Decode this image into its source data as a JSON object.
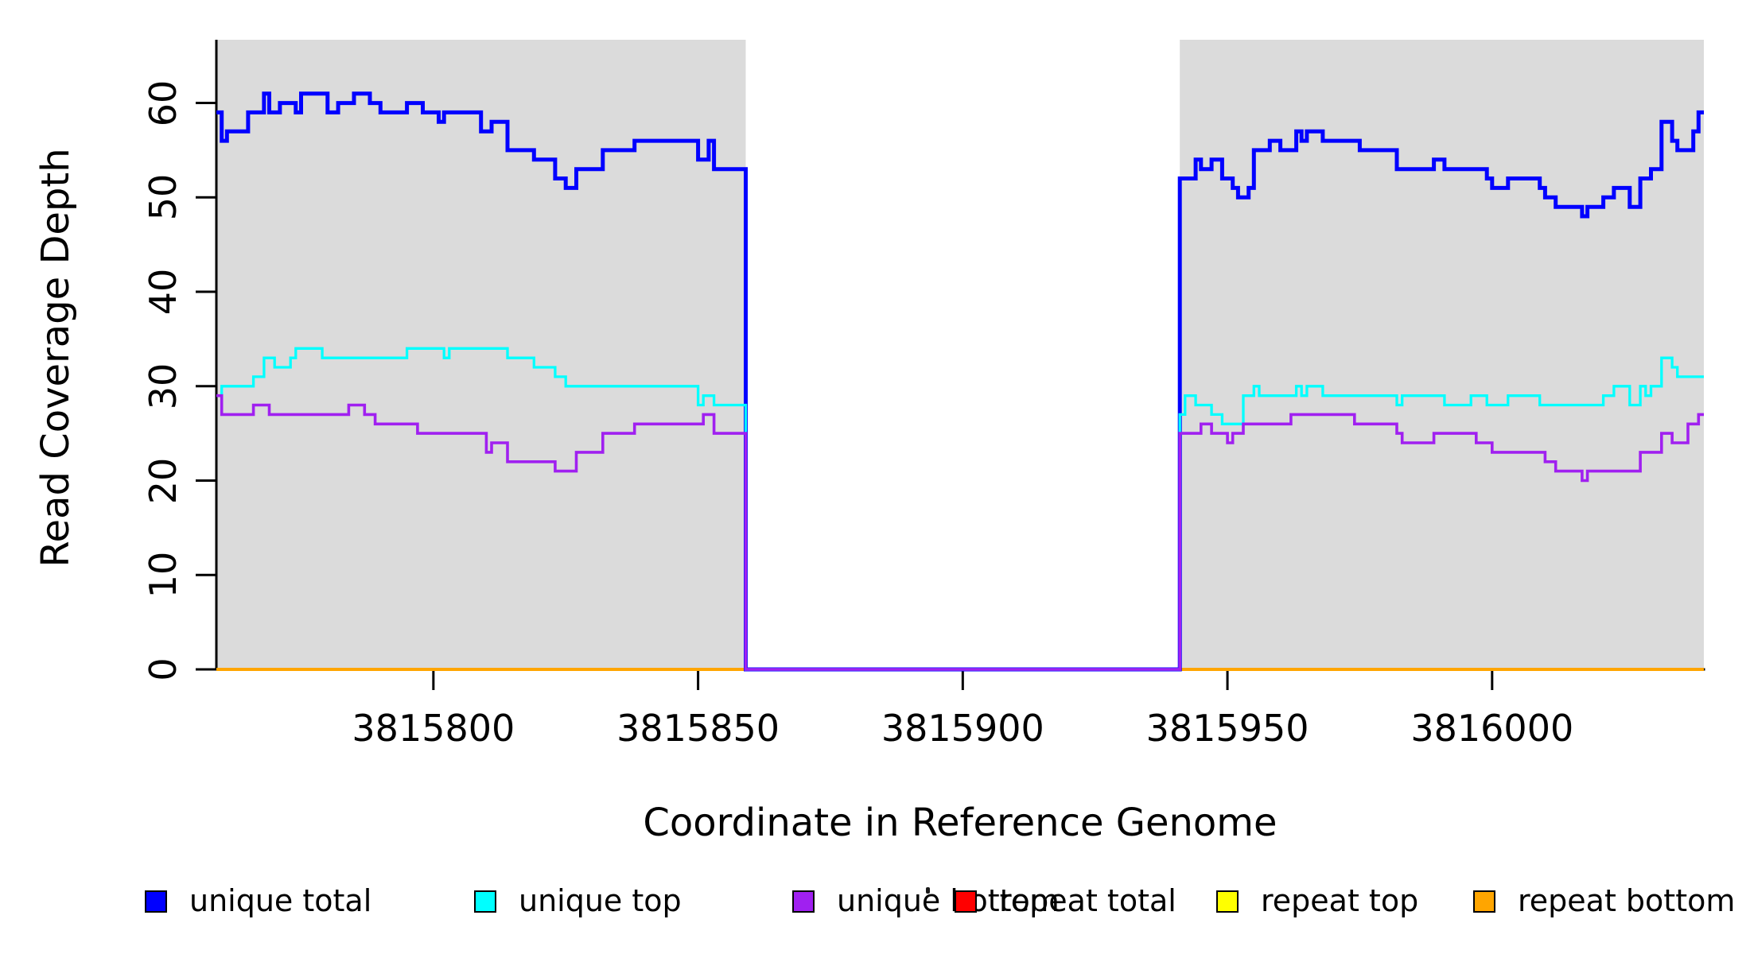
{
  "figure": {
    "x_axis_title": "Coordinate in Reference Genome",
    "y_axis_title": "Read Coverage Depth"
  },
  "legend": {
    "items": [
      {
        "label": "unique total",
        "color": "#0000FF"
      },
      {
        "label": "unique top",
        "color": "#00FFFF"
      },
      {
        "label": "unique bottom",
        "color": "#A020F0"
      },
      {
        "label": "repeat total",
        "color": "#FF0000"
      },
      {
        "label": "repeat top",
        "color": "#FFFF00"
      },
      {
        "label": "repeat bottom",
        "color": "#FFA500"
      }
    ]
  },
  "chart_data": {
    "type": "line",
    "subtype": "step-coverage-plot",
    "title": "",
    "xlabel": "Coordinate in Reference Genome",
    "ylabel": "Read Coverage Depth",
    "xlim": [
      3815759,
      3816040
    ],
    "ylim": [
      0,
      66.7
    ],
    "x_ticks": [
      3815800,
      3815850,
      3815900,
      3815950,
      3816000
    ],
    "x_tick_labels": [
      "3815800",
      "3815850",
      "3815900",
      "3815950",
      "3816000"
    ],
    "y_ticks": [
      0,
      10,
      20,
      30,
      40,
      50,
      60
    ],
    "y_tick_labels": [
      "0",
      "10",
      "20",
      "30",
      "40",
      "50",
      "60"
    ],
    "grid": false,
    "legend_position": "bottom",
    "shade_color": "#DBDBDB",
    "shaded_regions": [
      {
        "x0": 3815759,
        "x1": 3815859
      },
      {
        "x0": 3815941,
        "x1": 3816040
      }
    ],
    "gap_region": {
      "x0": 3815859,
      "x1": 3815941,
      "note": "all unique series drop to 0; no shading"
    },
    "series": [
      {
        "name": "repeat total",
        "color": "#FF0000",
        "width": 3.5,
        "steps": [
          [
            3815759,
            0
          ]
        ]
      },
      {
        "name": "repeat top",
        "color": "#FFFF00",
        "width": 3.5,
        "steps": [
          [
            3815759,
            0
          ]
        ]
      },
      {
        "name": "repeat bottom",
        "color": "#FFA500",
        "width": 4,
        "steps": [
          [
            3815759,
            0
          ]
        ]
      },
      {
        "name": "unique total",
        "color": "#0000FF",
        "width": 5,
        "steps": [
          [
            3815759,
            59
          ],
          [
            3815760,
            56
          ],
          [
            3815761,
            57
          ],
          [
            3815765,
            59
          ],
          [
            3815768,
            61
          ],
          [
            3815769,
            59
          ],
          [
            3815771,
            60
          ],
          [
            3815774,
            59
          ],
          [
            3815775,
            61
          ],
          [
            3815780,
            59
          ],
          [
            3815782,
            60
          ],
          [
            3815785,
            61
          ],
          [
            3815788,
            60
          ],
          [
            3815790,
            59
          ],
          [
            3815795,
            60
          ],
          [
            3815798,
            59
          ],
          [
            3815801,
            58
          ],
          [
            3815802,
            59
          ],
          [
            3815809,
            57
          ],
          [
            3815811,
            58
          ],
          [
            3815814,
            55
          ],
          [
            3815819,
            54
          ],
          [
            3815823,
            52
          ],
          [
            3815825,
            51
          ],
          [
            3815827,
            53
          ],
          [
            3815832,
            55
          ],
          [
            3815838,
            56
          ],
          [
            3815850,
            54
          ],
          [
            3815852,
            56
          ],
          [
            3815853,
            53
          ],
          [
            3815859,
            0
          ],
          [
            3815941,
            52
          ],
          [
            3815944,
            54
          ],
          [
            3815945,
            53
          ],
          [
            3815947,
            54
          ],
          [
            3815949,
            52
          ],
          [
            3815951,
            51
          ],
          [
            3815952,
            50
          ],
          [
            3815954,
            51
          ],
          [
            3815955,
            55
          ],
          [
            3815958,
            56
          ],
          [
            3815960,
            55
          ],
          [
            3815963,
            57
          ],
          [
            3815964,
            56
          ],
          [
            3815965,
            57
          ],
          [
            3815968,
            56
          ],
          [
            3815975,
            55
          ],
          [
            3815982,
            53
          ],
          [
            3815989,
            54
          ],
          [
            3815991,
            53
          ],
          [
            3815999,
            52
          ],
          [
            3816000,
            51
          ],
          [
            3816003,
            52
          ],
          [
            3816009,
            51
          ],
          [
            3816010,
            50
          ],
          [
            3816012,
            49
          ],
          [
            3816017,
            48
          ],
          [
            3816018,
            49
          ],
          [
            3816021,
            50
          ],
          [
            3816023,
            51
          ],
          [
            3816026,
            49
          ],
          [
            3816028,
            52
          ],
          [
            3816030,
            53
          ],
          [
            3816032,
            58
          ],
          [
            3816034,
            56
          ],
          [
            3816035,
            55
          ],
          [
            3816038,
            57
          ],
          [
            3816039,
            59
          ]
        ]
      },
      {
        "name": "unique top",
        "color": "#00FFFF",
        "width": 3.3,
        "steps": [
          [
            3815759,
            29
          ],
          [
            3815760,
            30
          ],
          [
            3815766,
            31
          ],
          [
            3815768,
            33
          ],
          [
            3815770,
            32
          ],
          [
            3815773,
            33
          ],
          [
            3815774,
            34
          ],
          [
            3815779,
            33
          ],
          [
            3815795,
            34
          ],
          [
            3815802,
            33
          ],
          [
            3815803,
            34
          ],
          [
            3815814,
            33
          ],
          [
            3815819,
            32
          ],
          [
            3815823,
            31
          ],
          [
            3815825,
            30
          ],
          [
            3815850,
            28
          ],
          [
            3815851,
            29
          ],
          [
            3815853,
            28
          ],
          [
            3815859,
            0
          ],
          [
            3815941,
            27
          ],
          [
            3815942,
            29
          ],
          [
            3815944,
            28
          ],
          [
            3815947,
            27
          ],
          [
            3815949,
            26
          ],
          [
            3815953,
            29
          ],
          [
            3815955,
            30
          ],
          [
            3815956,
            29
          ],
          [
            3815963,
            30
          ],
          [
            3815964,
            29
          ],
          [
            3815965,
            30
          ],
          [
            3815968,
            29
          ],
          [
            3815982,
            28
          ],
          [
            3815983,
            29
          ],
          [
            3815991,
            28
          ],
          [
            3815996,
            29
          ],
          [
            3815999,
            28
          ],
          [
            3816003,
            29
          ],
          [
            3816009,
            28
          ],
          [
            3816021,
            29
          ],
          [
            3816023,
            30
          ],
          [
            3816026,
            28
          ],
          [
            3816028,
            30
          ],
          [
            3816029,
            29
          ],
          [
            3816030,
            30
          ],
          [
            3816032,
            33
          ],
          [
            3816034,
            32
          ],
          [
            3816035,
            31
          ]
        ]
      },
      {
        "name": "unique bottom",
        "color": "#A020F0",
        "width": 3.6,
        "steps": [
          [
            3815759,
            29
          ],
          [
            3815760,
            27
          ],
          [
            3815766,
            28
          ],
          [
            3815769,
            27
          ],
          [
            3815784,
            28
          ],
          [
            3815787,
            27
          ],
          [
            3815789,
            26
          ],
          [
            3815797,
            25
          ],
          [
            3815810,
            23
          ],
          [
            3815811,
            24
          ],
          [
            3815814,
            22
          ],
          [
            3815823,
            21
          ],
          [
            3815827,
            23
          ],
          [
            3815832,
            25
          ],
          [
            3815838,
            26
          ],
          [
            3815851,
            27
          ],
          [
            3815853,
            25
          ],
          [
            3815859,
            0
          ],
          [
            3815941,
            25
          ],
          [
            3815945,
            26
          ],
          [
            3815947,
            25
          ],
          [
            3815950,
            24
          ],
          [
            3815951,
            25
          ],
          [
            3815953,
            26
          ],
          [
            3815962,
            27
          ],
          [
            3815974,
            26
          ],
          [
            3815982,
            25
          ],
          [
            3815983,
            24
          ],
          [
            3815989,
            25
          ],
          [
            3815997,
            24
          ],
          [
            3816000,
            23
          ],
          [
            3816010,
            22
          ],
          [
            3816012,
            21
          ],
          [
            3816017,
            20
          ],
          [
            3816018,
            21
          ],
          [
            3816028,
            23
          ],
          [
            3816032,
            25
          ],
          [
            3816034,
            24
          ],
          [
            3816037,
            26
          ],
          [
            3816039,
            27
          ]
        ]
      }
    ]
  }
}
